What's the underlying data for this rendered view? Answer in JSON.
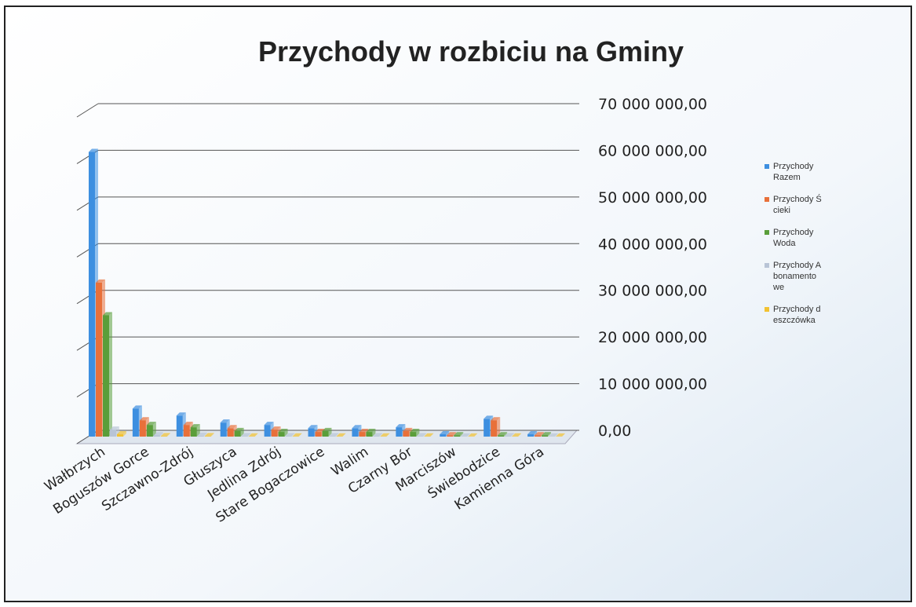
{
  "chart_data": {
    "type": "bar3d",
    "title": "Przychody w rozbiciu na Gminy",
    "categories": [
      "Wałbrzych",
      "Boguszów Gorce",
      "Szczawno-Zdrój",
      "Głuszyca",
      "Jedlina Zdrój",
      "Stare Bogaczowice",
      "Walim",
      "Czarny Bór",
      "Marciszów",
      "Świebodzice",
      "Kamienna Góra"
    ],
    "series": [
      {
        "name": "Przychody Razem",
        "color": "#3d8fe0",
        "values": [
          61000000,
          6000000,
          4500000,
          3000000,
          2500000,
          1800000,
          1800000,
          2000000,
          500000,
          3800000,
          500000
        ]
      },
      {
        "name": "Przychody Ścieki",
        "color": "#e8703a",
        "values": [
          33000000,
          3500000,
          2500000,
          1800000,
          1500000,
          1000000,
          1000000,
          1200000,
          300000,
          3500000,
          300000
        ]
      },
      {
        "name": "Przychody Woda",
        "color": "#5a9e3a",
        "values": [
          26000000,
          2500000,
          2000000,
          1200000,
          1000000,
          1200000,
          1000000,
          1000000,
          300000,
          300000,
          300000
        ]
      },
      {
        "name": "Przychody Abonamentowe",
        "color": "#b8c4d6",
        "values": [
          1500000,
          300000,
          200000,
          100000,
          100000,
          100000,
          100000,
          100000,
          50000,
          100000,
          50000
        ]
      },
      {
        "name": "Przychody deszczówka",
        "color": "#f2c232",
        "values": [
          500000,
          100000,
          100000,
          50000,
          50000,
          50000,
          50000,
          50000,
          20000,
          50000,
          20000
        ]
      }
    ],
    "ylim": [
      0,
      70000000
    ],
    "yticks": [
      {
        "value": 0,
        "label": "0,00"
      },
      {
        "value": 10000000,
        "label": "10 000 000,00"
      },
      {
        "value": 20000000,
        "label": "20 000 000,00"
      },
      {
        "value": 30000000,
        "label": "30 000 000,00"
      },
      {
        "value": 40000000,
        "label": "40 000 000,00"
      },
      {
        "value": 50000000,
        "label": "50 000 000,00"
      },
      {
        "value": 60000000,
        "label": "60 000 000,00"
      },
      {
        "value": 70000000,
        "label": "70 000 000,00"
      }
    ],
    "grid": true,
    "legend": "right"
  }
}
